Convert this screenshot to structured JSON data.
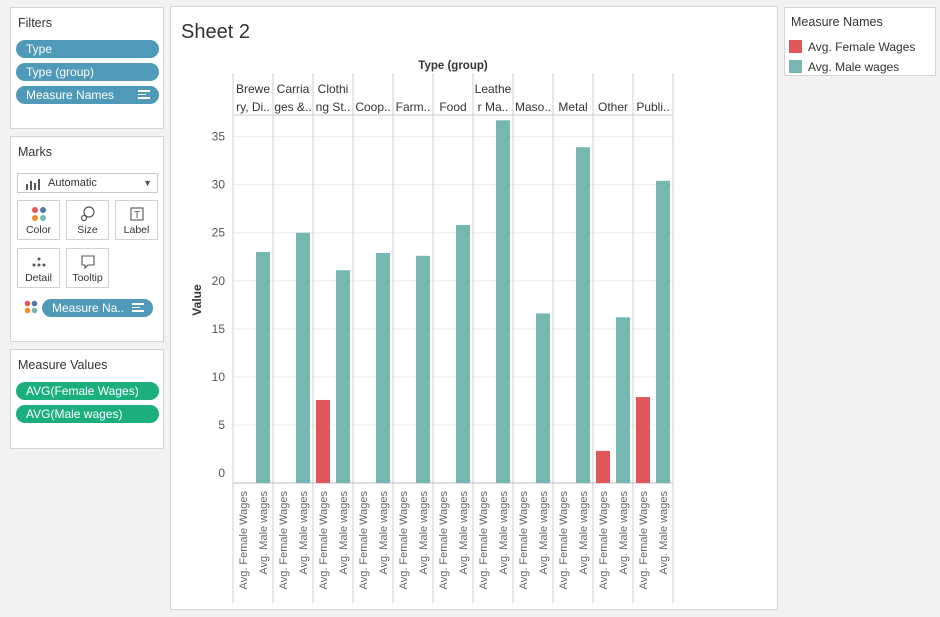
{
  "filters": {
    "title": "Filters",
    "pills": [
      "Type",
      "Type (group)",
      "Measure Names"
    ]
  },
  "marks": {
    "title": "Marks",
    "mark_type": "Automatic",
    "cards": [
      "Color",
      "Size",
      "Label",
      "Detail",
      "Tooltip"
    ],
    "color_pill": "Measure Na.."
  },
  "measure_values": {
    "title": "Measure Values",
    "pills": [
      "AVG(Female Wages)",
      "AVG(Male wages)"
    ]
  },
  "sheet": {
    "title": "Sheet 2"
  },
  "legend": {
    "title": "Measure Names",
    "items": [
      {
        "label": "Avg. Female Wages",
        "color": "#e15759"
      },
      {
        "label": "Avg. Male wages",
        "color": "#76b7b2"
      }
    ]
  },
  "chart_data": {
    "type": "bar",
    "column_header": "Type (group)",
    "ylabel": "Value",
    "ylim": [
      0,
      36
    ],
    "yticks": [
      0,
      5,
      10,
      15,
      20,
      25,
      30,
      35
    ],
    "grid": true,
    "groups": [
      {
        "label_lines": [
          "Brewe",
          "ry, Di.."
        ]
      },
      {
        "label_lines": [
          "Carria",
          "ges &.."
        ]
      },
      {
        "label_lines": [
          "Clothi",
          "ng St.."
        ]
      },
      {
        "label_lines": [
          "Coop.."
        ]
      },
      {
        "label_lines": [
          "Farm.."
        ]
      },
      {
        "label_lines": [
          "Food"
        ]
      },
      {
        "label_lines": [
          "Leathe",
          "r Ma.."
        ]
      },
      {
        "label_lines": [
          "Maso.."
        ]
      },
      {
        "label_lines": [
          "Metal"
        ]
      },
      {
        "label_lines": [
          "Other"
        ]
      },
      {
        "label_lines": [
          "Publi.."
        ]
      }
    ],
    "series": [
      {
        "name": "Avg. Female Wages",
        "color": "#e15759",
        "values": [
          null,
          null,
          7.6,
          null,
          null,
          null,
          null,
          null,
          null,
          2.3,
          7.9
        ]
      },
      {
        "name": "Avg. Male wages",
        "color": "#76b7b2",
        "values": [
          23.0,
          25.0,
          21.1,
          22.9,
          22.6,
          25.8,
          36.7,
          16.6,
          33.9,
          16.2,
          30.4
        ]
      }
    ],
    "x_tick_labels": [
      "Avg. Female Wages",
      "Avg. Male wages"
    ]
  }
}
